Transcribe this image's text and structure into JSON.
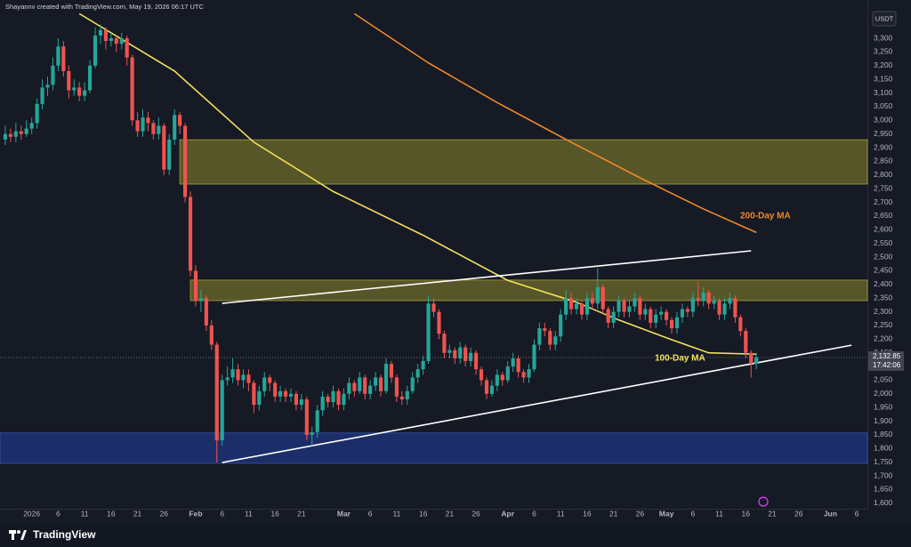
{
  "chart_data": {
    "type": "candlestick",
    "header": "Shayannv created with TradingView.com, May 19, 2026 06:17 UTC",
    "currency": "USDT",
    "brand": "TradingView",
    "up_color": "#26a69a",
    "down_color": "#ef5350",
    "xlim": [
      "2025-12-26",
      "2026-06-08"
    ],
    "ylim": [
      1580,
      3440
    ],
    "grid": false,
    "yticks": [
      {
        "value": 1600,
        "label": "1,600"
      },
      {
        "value": 1650,
        "label": "1,650"
      },
      {
        "value": 1700,
        "label": "1,700"
      },
      {
        "value": 1750,
        "label": "1,750"
      },
      {
        "value": 1800,
        "label": "1,800"
      },
      {
        "value": 1850,
        "label": "1,850"
      },
      {
        "value": 1900,
        "label": "1,900"
      },
      {
        "value": 1950,
        "label": "1,950"
      },
      {
        "value": 2000,
        "label": "2,000"
      },
      {
        "value": 2050,
        "label": "2,050"
      },
      {
        "value": 2100,
        "label": "2,100"
      },
      {
        "value": 2150,
        "label": "2,150"
      },
      {
        "value": 2200,
        "label": "2,200"
      },
      {
        "value": 2250,
        "label": "2,250"
      },
      {
        "value": 2300,
        "label": "2,300"
      },
      {
        "value": 2350,
        "label": "2,350"
      },
      {
        "value": 2400,
        "label": "2,400"
      },
      {
        "value": 2450,
        "label": "2,450"
      },
      {
        "value": 2500,
        "label": "2,500"
      },
      {
        "value": 2550,
        "label": "2,550"
      },
      {
        "value": 2600,
        "label": "2,600"
      },
      {
        "value": 2650,
        "label": "2,650"
      },
      {
        "value": 2700,
        "label": "2,700"
      },
      {
        "value": 2750,
        "label": "2,750"
      },
      {
        "value": 2800,
        "label": "2,800"
      },
      {
        "value": 2850,
        "label": "2,850"
      },
      {
        "value": 2900,
        "label": "2,900"
      },
      {
        "value": 2950,
        "label": "2,950"
      },
      {
        "value": 3000,
        "label": "3,000"
      },
      {
        "value": 3050,
        "label": "3,050"
      },
      {
        "value": 3100,
        "label": "3,100"
      },
      {
        "value": 3150,
        "label": "3,150"
      },
      {
        "value": 3200,
        "label": "3,200"
      },
      {
        "value": 3250,
        "label": "3,250"
      },
      {
        "value": 3300,
        "label": "3,300"
      }
    ],
    "xticks": [
      {
        "value": "2026-01-01",
        "label": "2026"
      },
      {
        "value": "2026-01-06",
        "label": "6"
      },
      {
        "value": "2026-01-11",
        "label": "11"
      },
      {
        "value": "2026-01-16",
        "label": "16"
      },
      {
        "value": "2026-01-21",
        "label": "21"
      },
      {
        "value": "2026-01-26",
        "label": "26"
      },
      {
        "value": "2026-02-01",
        "label": "Feb"
      },
      {
        "value": "2026-02-06",
        "label": "6"
      },
      {
        "value": "2026-02-11",
        "label": "11"
      },
      {
        "value": "2026-02-16",
        "label": "16"
      },
      {
        "value": "2026-02-21",
        "label": "21"
      },
      {
        "value": "2026-03-01",
        "label": "Mar"
      },
      {
        "value": "2026-03-06",
        "label": "6"
      },
      {
        "value": "2026-03-11",
        "label": "11"
      },
      {
        "value": "2026-03-16",
        "label": "16"
      },
      {
        "value": "2026-03-21",
        "label": "21"
      },
      {
        "value": "2026-03-26",
        "label": "26"
      },
      {
        "value": "2026-04-01",
        "label": "Apr"
      },
      {
        "value": "2026-04-06",
        "label": "6"
      },
      {
        "value": "2026-04-11",
        "label": "11"
      },
      {
        "value": "2026-04-16",
        "label": "16"
      },
      {
        "value": "2026-04-21",
        "label": "21"
      },
      {
        "value": "2026-04-26",
        "label": "26"
      },
      {
        "value": "2026-05-01",
        "label": "May"
      },
      {
        "value": "2026-05-06",
        "label": "6"
      },
      {
        "value": "2026-05-11",
        "label": "11"
      },
      {
        "value": "2026-05-16",
        "label": "16"
      },
      {
        "value": "2026-05-21",
        "label": "21"
      },
      {
        "value": "2026-05-26",
        "label": "26"
      },
      {
        "value": "2026-06-01",
        "label": "Jun"
      },
      {
        "value": "2026-06-06",
        "label": "6"
      }
    ],
    "last_price": {
      "value": 2132.85,
      "label": "2,132.85"
    },
    "countdown": "17:42:06",
    "zones": [
      {
        "top": 2929,
        "bottom": 2767,
        "start": "2026-01-29",
        "color": "#6e6b2a",
        "border": "#a8a23c"
      },
      {
        "top": 2416,
        "bottom": 2341,
        "start": "2026-01-31",
        "color": "#6e6b2a",
        "border": "#a8a23c"
      },
      {
        "top": 1857,
        "bottom": 1746,
        "start": "2025-12-26",
        "color": "#1f3580",
        "border": "#3453b0"
      }
    ],
    "ma_lines": [
      {
        "name": "100-Day MA",
        "color": "#f2e15a",
        "x": [
          "2026-01-10",
          "2026-01-28",
          "2026-02-12",
          "2026-02-27",
          "2026-03-16",
          "2026-04-01",
          "2026-04-14",
          "2026-04-22",
          "2026-05-01",
          "2026-05-09",
          "2026-05-18"
        ],
        "values": [
          3390,
          3180,
          2920,
          2740,
          2580,
          2415,
          2335,
          2270,
          2205,
          2150,
          2145
        ]
      },
      {
        "name": "200-Day MA",
        "color": "#f0882a",
        "x": [
          "2026-03-03",
          "2026-03-17",
          "2026-03-30",
          "2026-04-13",
          "2026-04-26",
          "2026-05-08",
          "2026-05-18"
        ],
        "values": [
          3390,
          3210,
          3065,
          2920,
          2790,
          2676,
          2590
        ]
      }
    ],
    "trendlines": [
      {
        "x": [
          "2026-02-06",
          "2026-05-17"
        ],
        "values": [
          2331,
          2523
        ]
      },
      {
        "x": [
          "2026-02-06",
          "2026-06-05"
        ],
        "values": [
          1749,
          2178
        ]
      }
    ],
    "x": [
      "2025-12-27",
      "2025-12-28",
      "2025-12-29",
      "2025-12-30",
      "2025-12-31",
      "2026-01-01",
      "2026-01-02",
      "2026-01-03",
      "2026-01-04",
      "2026-01-05",
      "2026-01-06",
      "2026-01-07",
      "2026-01-08",
      "2026-01-09",
      "2026-01-10",
      "2026-01-11",
      "2026-01-12",
      "2026-01-13",
      "2026-01-14",
      "2026-01-15",
      "2026-01-16",
      "2026-01-17",
      "2026-01-18",
      "2026-01-19",
      "2026-01-20",
      "2026-01-21",
      "2026-01-22",
      "2026-01-23",
      "2026-01-24",
      "2026-01-25",
      "2026-01-26",
      "2026-01-27",
      "2026-01-28",
      "2026-01-29",
      "2026-01-30",
      "2026-01-31",
      "2026-02-01",
      "2026-02-02",
      "2026-02-03",
      "2026-02-04",
      "2026-02-05",
      "2026-02-06",
      "2026-02-07",
      "2026-02-08",
      "2026-02-09",
      "2026-02-10",
      "2026-02-11",
      "2026-02-12",
      "2026-02-13",
      "2026-02-14",
      "2026-02-15",
      "2026-02-16",
      "2026-02-17",
      "2026-02-18",
      "2026-02-19",
      "2026-02-20",
      "2026-02-21",
      "2026-02-22",
      "2026-02-23",
      "2026-02-24",
      "2026-02-25",
      "2026-02-26",
      "2026-02-27",
      "2026-02-28",
      "2026-03-01",
      "2026-03-02",
      "2026-03-03",
      "2026-03-04",
      "2026-03-05",
      "2026-03-06",
      "2026-03-07",
      "2026-03-08",
      "2026-03-09",
      "2026-03-10",
      "2026-03-11",
      "2026-03-12",
      "2026-03-13",
      "2026-03-14",
      "2026-03-15",
      "2026-03-16",
      "2026-03-17",
      "2026-03-18",
      "2026-03-19",
      "2026-03-20",
      "2026-03-21",
      "2026-03-22",
      "2026-03-23",
      "2026-03-24",
      "2026-03-25",
      "2026-03-26",
      "2026-03-27",
      "2026-03-28",
      "2026-03-29",
      "2026-03-30",
      "2026-03-31",
      "2026-04-01",
      "2026-04-02",
      "2026-04-03",
      "2026-04-04",
      "2026-04-05",
      "2026-04-06",
      "2026-04-07",
      "2026-04-08",
      "2026-04-09",
      "2026-04-10",
      "2026-04-11",
      "2026-04-12",
      "2026-04-13",
      "2026-04-14",
      "2026-04-15",
      "2026-04-16",
      "2026-04-17",
      "2026-04-18",
      "2026-04-19",
      "2026-04-20",
      "2026-04-21",
      "2026-04-22",
      "2026-04-23",
      "2026-04-24",
      "2026-04-25",
      "2026-04-26",
      "2026-04-27",
      "2026-04-28",
      "2026-04-29",
      "2026-04-30",
      "2026-05-01",
      "2026-05-02",
      "2026-05-03",
      "2026-05-04",
      "2026-05-05",
      "2026-05-06",
      "2026-05-07",
      "2026-05-08",
      "2026-05-09",
      "2026-05-10",
      "2026-05-11",
      "2026-05-12",
      "2026-05-13",
      "2026-05-14",
      "2026-05-15",
      "2026-05-16",
      "2026-05-17",
      "2026-05-18"
    ],
    "ohlc": [
      [
        2930,
        2980,
        2910,
        2950
      ],
      [
        2950,
        2970,
        2920,
        2940
      ],
      [
        2940,
        2990,
        2920,
        2960
      ],
      [
        2960,
        2980,
        2930,
        2950
      ],
      [
        2950,
        3000,
        2940,
        2970
      ],
      [
        2970,
        3010,
        2950,
        2990
      ],
      [
        2990,
        3080,
        2970,
        3060
      ],
      [
        3060,
        3150,
        3040,
        3120
      ],
      [
        3120,
        3160,
        3090,
        3130
      ],
      [
        3130,
        3230,
        3110,
        3200
      ],
      [
        3200,
        3300,
        3180,
        3270
      ],
      [
        3270,
        3290,
        3160,
        3180
      ],
      [
        3180,
        3200,
        3080,
        3110
      ],
      [
        3110,
        3150,
        3090,
        3120
      ],
      [
        3120,
        3140,
        3070,
        3090
      ],
      [
        3090,
        3140,
        3070,
        3110
      ],
      [
        3110,
        3220,
        3100,
        3200
      ],
      [
        3200,
        3340,
        3190,
        3310
      ],
      [
        3310,
        3350,
        3280,
        3330
      ],
      [
        3330,
        3340,
        3260,
        3290
      ],
      [
        3290,
        3320,
        3270,
        3300
      ],
      [
        3300,
        3310,
        3250,
        3280
      ],
      [
        3280,
        3320,
        3260,
        3300
      ],
      [
        3300,
        3310,
        3200,
        3230
      ],
      [
        3230,
        3240,
        2980,
        3000
      ],
      [
        3000,
        3030,
        2940,
        2960
      ],
      [
        2960,
        3040,
        2940,
        3010
      ],
      [
        3010,
        3030,
        2960,
        2990
      ],
      [
        2990,
        3000,
        2930,
        2950
      ],
      [
        2950,
        3010,
        2930,
        2980
      ],
      [
        2980,
        2990,
        2800,
        2820
      ],
      [
        2820,
        2950,
        2800,
        2930
      ],
      [
        2930,
        3040,
        2910,
        3020
      ],
      [
        3020,
        3030,
        2950,
        2980
      ],
      [
        2980,
        2990,
        2700,
        2720
      ],
      [
        2720,
        2740,
        2430,
        2450
      ],
      [
        2450,
        2470,
        2320,
        2340
      ],
      [
        2340,
        2380,
        2300,
        2350
      ],
      [
        2350,
        2360,
        2230,
        2250
      ],
      [
        2250,
        2270,
        2160,
        2180
      ],
      [
        2180,
        2190,
        1750,
        1830
      ],
      [
        1830,
        2070,
        1810,
        2050
      ],
      [
        2050,
        2100,
        2030,
        2060
      ],
      [
        2060,
        2130,
        2040,
        2090
      ],
      [
        2090,
        2110,
        2030,
        2050
      ],
      [
        2050,
        2090,
        2020,
        2070
      ],
      [
        2070,
        2090,
        2010,
        2040
      ],
      [
        2040,
        2050,
        1930,
        1960
      ],
      [
        1960,
        2030,
        1940,
        2010
      ],
      [
        2010,
        2080,
        1990,
        2060
      ],
      [
        2060,
        2070,
        2010,
        2040
      ],
      [
        2040,
        2050,
        1970,
        1990
      ],
      [
        1990,
        2030,
        1970,
        2010
      ],
      [
        2010,
        2020,
        1970,
        1990
      ],
      [
        1990,
        2020,
        1970,
        2000
      ],
      [
        2000,
        2010,
        1940,
        1960
      ],
      [
        1960,
        2000,
        1940,
        1980
      ],
      [
        1980,
        1990,
        1830,
        1850
      ],
      [
        1850,
        1880,
        1810,
        1860
      ],
      [
        1860,
        1960,
        1840,
        1940
      ],
      [
        1940,
        2010,
        1920,
        1990
      ],
      [
        1990,
        2000,
        1950,
        1970
      ],
      [
        1970,
        2030,
        1950,
        2010
      ],
      [
        2010,
        2020,
        1940,
        1960
      ],
      [
        1960,
        2020,
        1940,
        2000
      ],
      [
        2000,
        2060,
        1980,
        2040
      ],
      [
        2040,
        2050,
        1990,
        2010
      ],
      [
        2010,
        2080,
        2000,
        2060
      ],
      [
        2060,
        2070,
        1980,
        2000
      ],
      [
        2000,
        2050,
        1980,
        2030
      ],
      [
        2030,
        2080,
        2010,
        2060
      ],
      [
        2060,
        2070,
        1990,
        2010
      ],
      [
        2010,
        2130,
        2000,
        2110
      ],
      [
        2110,
        2120,
        2040,
        2060
      ],
      [
        2060,
        2070,
        1970,
        1990
      ],
      [
        1990,
        2010,
        1960,
        1980
      ],
      [
        1980,
        2030,
        1960,
        2010
      ],
      [
        2010,
        2080,
        2000,
        2060
      ],
      [
        2060,
        2110,
        2040,
        2090
      ],
      [
        2090,
        2140,
        2070,
        2120
      ],
      [
        2120,
        2360,
        2110,
        2330
      ],
      [
        2330,
        2350,
        2280,
        2300
      ],
      [
        2300,
        2310,
        2200,
        2220
      ],
      [
        2220,
        2230,
        2130,
        2150
      ],
      [
        2150,
        2180,
        2130,
        2160
      ],
      [
        2160,
        2170,
        2110,
        2130
      ],
      [
        2130,
        2190,
        2110,
        2170
      ],
      [
        2170,
        2180,
        2100,
        2120
      ],
      [
        2120,
        2170,
        2100,
        2150
      ],
      [
        2150,
        2160,
        2070,
        2090
      ],
      [
        2090,
        2100,
        2030,
        2050
      ],
      [
        2050,
        2060,
        1980,
        2000
      ],
      [
        2000,
        2050,
        1990,
        2030
      ],
      [
        2030,
        2090,
        2010,
        2070
      ],
      [
        2070,
        2080,
        2030,
        2050
      ],
      [
        2050,
        2120,
        2040,
        2100
      ],
      [
        2100,
        2150,
        2080,
        2130
      ],
      [
        2130,
        2140,
        2060,
        2080
      ],
      [
        2080,
        2090,
        2040,
        2060
      ],
      [
        2060,
        2110,
        2040,
        2090
      ],
      [
        2090,
        2200,
        2080,
        2180
      ],
      [
        2180,
        2260,
        2160,
        2240
      ],
      [
        2240,
        2260,
        2210,
        2230
      ],
      [
        2230,
        2240,
        2160,
        2180
      ],
      [
        2180,
        2230,
        2160,
        2210
      ],
      [
        2210,
        2310,
        2190,
        2290
      ],
      [
        2290,
        2380,
        2270,
        2350
      ],
      [
        2350,
        2370,
        2290,
        2310
      ],
      [
        2310,
        2350,
        2290,
        2330
      ],
      [
        2330,
        2340,
        2270,
        2290
      ],
      [
        2290,
        2370,
        2270,
        2350
      ],
      [
        2350,
        2370,
        2310,
        2330
      ],
      [
        2330,
        2460,
        2310,
        2390
      ],
      [
        2390,
        2400,
        2290,
        2310
      ],
      [
        2310,
        2320,
        2240,
        2260
      ],
      [
        2260,
        2320,
        2240,
        2300
      ],
      [
        2300,
        2360,
        2280,
        2340
      ],
      [
        2340,
        2350,
        2280,
        2300
      ],
      [
        2300,
        2340,
        2280,
        2320
      ],
      [
        2320,
        2370,
        2300,
        2350
      ],
      [
        2350,
        2360,
        2270,
        2290
      ],
      [
        2290,
        2330,
        2270,
        2310
      ],
      [
        2310,
        2320,
        2240,
        2260
      ],
      [
        2260,
        2310,
        2240,
        2290
      ],
      [
        2290,
        2320,
        2270,
        2300
      ],
      [
        2300,
        2310,
        2250,
        2270
      ],
      [
        2270,
        2280,
        2220,
        2240
      ],
      [
        2240,
        2300,
        2220,
        2280
      ],
      [
        2280,
        2330,
        2260,
        2310
      ],
      [
        2310,
        2320,
        2280,
        2300
      ],
      [
        2300,
        2370,
        2280,
        2350
      ],
      [
        2350,
        2410,
        2320,
        2340
      ],
      [
        2340,
        2390,
        2320,
        2370
      ],
      [
        2370,
        2380,
        2310,
        2330
      ],
      [
        2330,
        2360,
        2310,
        2340
      ],
      [
        2340,
        2350,
        2270,
        2290
      ],
      [
        2290,
        2350,
        2270,
        2330
      ],
      [
        2330,
        2370,
        2310,
        2350
      ],
      [
        2350,
        2360,
        2260,
        2280
      ],
      [
        2280,
        2290,
        2210,
        2230
      ],
      [
        2230,
        2240,
        2130,
        2150
      ],
      [
        2150,
        2160,
        2060,
        2110
      ],
      [
        2110,
        2150,
        2090,
        2133
      ]
    ]
  }
}
